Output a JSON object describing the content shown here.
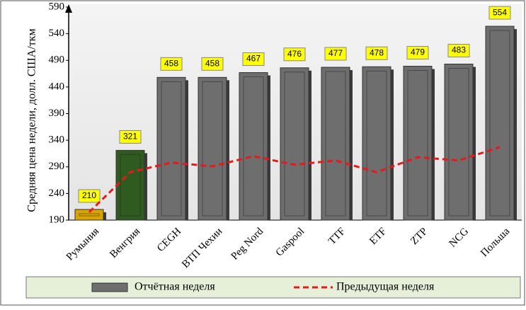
{
  "chart_data": {
    "type": "bar",
    "y_label": "Средняя цена недели, долл. США/ткм",
    "categories": [
      "Румыния",
      "Венгрия",
      "CEGH",
      "ВТП Чехии",
      "Peg Nord",
      "Gaspool",
      "TTF",
      "ETF",
      "ZTP",
      "NCG",
      "Польша"
    ],
    "series": [
      {
        "name": "Отчётная неделя",
        "type": "bar",
        "color": "#6e6e6e",
        "colors": [
          "#d9a400",
          "#2f5a20",
          "#6e6e6e",
          "#6e6e6e",
          "#6e6e6e",
          "#6e6e6e",
          "#6e6e6e",
          "#6e6e6e",
          "#6e6e6e",
          "#6e6e6e",
          "#6e6e6e"
        ],
        "values": [
          210,
          321,
          458,
          458,
          467,
          476,
          477,
          478,
          479,
          483,
          554
        ]
      },
      {
        "name": "Предыдущая неделя",
        "type": "line",
        "color": "#e8191b",
        "values": [
          205,
          280,
          298,
          291,
          310,
          294,
          302,
          280,
          308,
          302,
          327
        ]
      }
    ],
    "ylim": [
      190,
      590
    ],
    "yticks": [
      190,
      240,
      290,
      340,
      390,
      440,
      490,
      540,
      590
    ],
    "grid": false,
    "legend": "bottom"
  }
}
